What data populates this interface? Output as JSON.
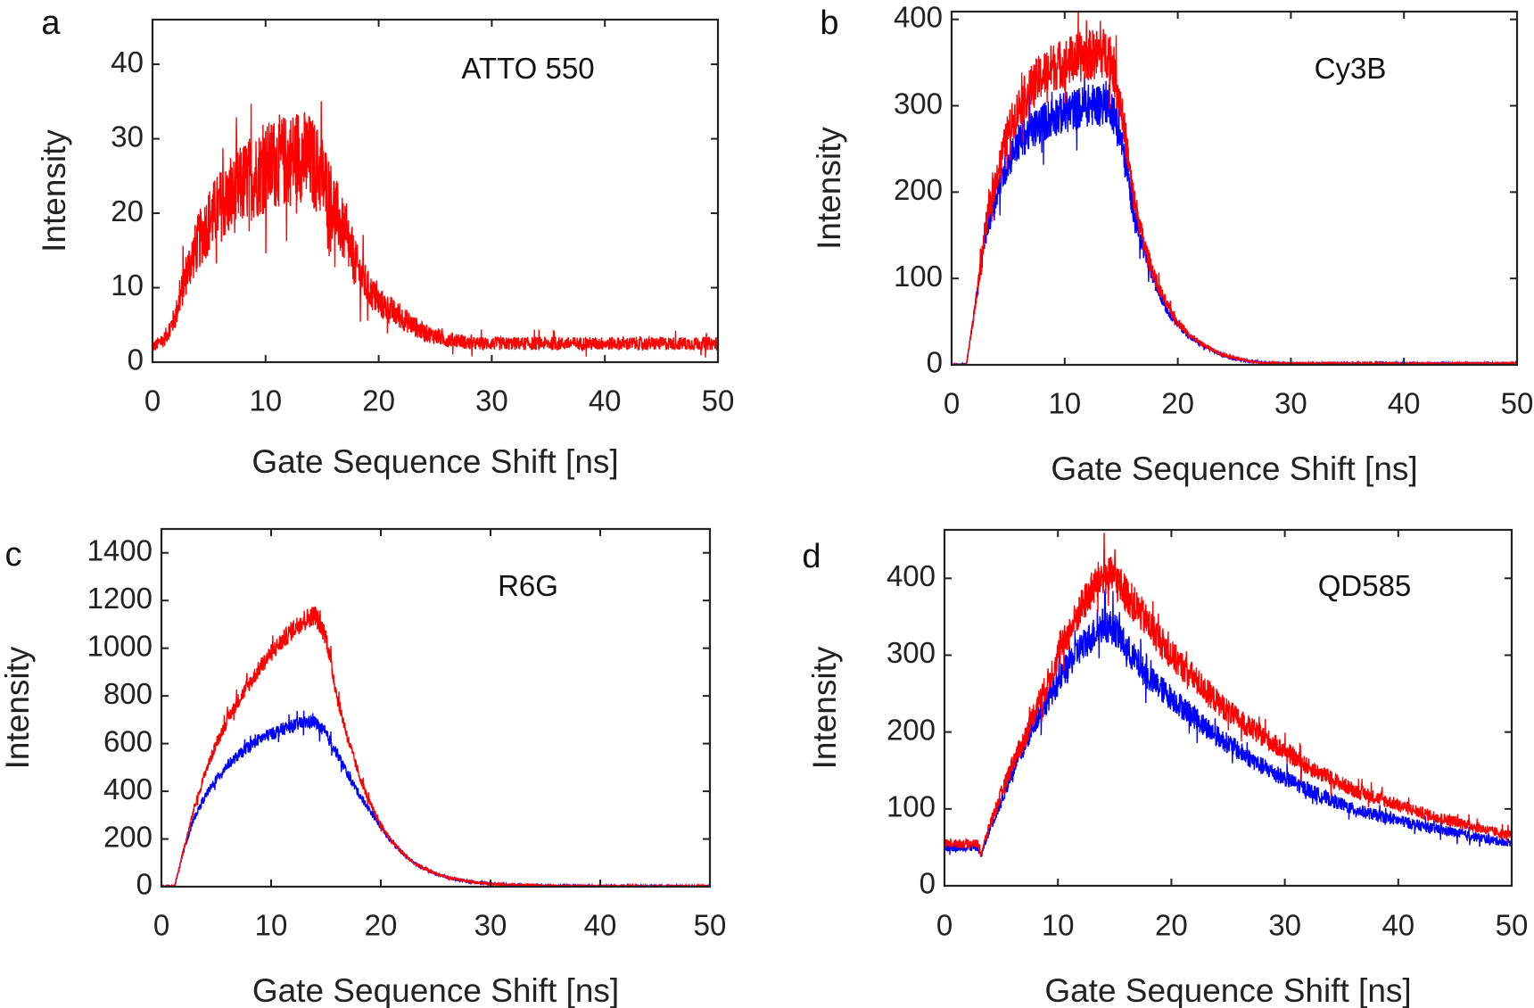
{
  "colors": {
    "red": "#ff0000",
    "blue": "#0000ff",
    "axis": "#222222"
  },
  "chart_data": [
    {
      "type": "line",
      "panel": "a",
      "annotation": "ATTO 550",
      "xlabel": "Gate Sequence Shift [ns]",
      "ylabel": "Intensity",
      "xlim": [
        0,
        50
      ],
      "ylim": [
        0,
        46
      ],
      "xticks": [
        0,
        10,
        20,
        30,
        40,
        50
      ],
      "yticks": [
        0,
        10,
        20,
        30,
        40
      ],
      "grid": false,
      "series": [
        {
          "color": "red",
          "x": [
            0,
            1,
            2,
            3,
            4,
            5,
            6,
            7,
            8,
            9,
            10,
            11,
            12,
            13,
            14,
            15,
            16,
            17,
            18,
            19,
            20,
            21,
            22,
            23,
            24,
            25,
            26,
            27,
            28,
            30,
            35,
            40,
            45,
            50
          ],
          "y": [
            2,
            3,
            6,
            12,
            16,
            19,
            21,
            22,
            24,
            25,
            26,
            27,
            27,
            28,
            27,
            25,
            21,
            17,
            13,
            10,
            8,
            7,
            6,
            5,
            4,
            3.5,
            3,
            3,
            2.5,
            2.5,
            2.5,
            2.5,
            2.5,
            2.5
          ]
        }
      ]
    },
    {
      "type": "line",
      "panel": "b",
      "annotation": "Cy3B",
      "xlabel": "Gate Sequence Shift [ns]",
      "ylabel": "Intensity",
      "xlim": [
        0,
        50
      ],
      "ylim": [
        0,
        409
      ],
      "xticks": [
        0,
        10,
        20,
        30,
        40,
        50
      ],
      "yticks": [
        0,
        100,
        200,
        300,
        400
      ],
      "grid": false,
      "series": [
        {
          "color": "blue",
          "x": [
            0,
            1.3,
            2,
            3,
            4,
            5,
            6,
            7,
            8,
            9,
            10,
            11,
            12,
            13,
            14,
            15,
            16,
            17,
            18,
            19,
            20,
            21,
            22,
            23,
            24,
            25,
            26,
            27,
            28,
            30,
            40,
            50
          ],
          "y": [
            0,
            0,
            60,
            150,
            200,
            235,
            260,
            270,
            280,
            288,
            292,
            296,
            300,
            302,
            305,
            260,
            185,
            130,
            95,
            65,
            47,
            33,
            24,
            17,
            11,
            7,
            5,
            3,
            2,
            1.5,
            1.5,
            1.5
          ]
        },
        {
          "color": "red",
          "x": [
            0,
            1.3,
            2,
            3,
            4,
            5,
            6,
            7,
            8,
            9,
            10,
            11,
            12,
            13,
            14,
            15,
            16,
            17,
            18,
            19,
            20,
            21,
            22,
            23,
            24,
            25,
            26,
            27,
            28,
            30,
            40,
            50
          ],
          "y": [
            0,
            0,
            60,
            160,
            220,
            270,
            300,
            320,
            335,
            345,
            350,
            355,
            358,
            360,
            362,
            300,
            200,
            140,
            100,
            70,
            50,
            35,
            25,
            18,
            12,
            8,
            5,
            3,
            2,
            1.5,
            1.5,
            1.5
          ]
        }
      ]
    },
    {
      "type": "line",
      "panel": "c",
      "annotation": "R6G",
      "xlabel": "Gate Sequence Shift [ns]",
      "ylabel": "Intensity",
      "xlim": [
        0,
        50
      ],
      "ylim": [
        0,
        1500
      ],
      "xticks": [
        0,
        10,
        20,
        30,
        40,
        50
      ],
      "yticks": [
        0,
        200,
        400,
        600,
        800,
        1000,
        1200,
        1400
      ],
      "grid": false,
      "series": [
        {
          "color": "blue",
          "x": [
            0,
            1.2,
            2,
            3,
            4,
            5,
            6,
            7,
            8,
            9,
            10,
            11,
            12,
            13,
            14,
            15,
            16,
            17,
            18,
            19,
            20,
            21,
            22,
            23,
            24,
            25,
            26,
            27,
            28,
            30,
            32,
            35,
            40,
            50
          ],
          "y": [
            0,
            0,
            150,
            290,
            380,
            450,
            510,
            550,
            590,
            620,
            640,
            660,
            675,
            690,
            690,
            640,
            560,
            470,
            390,
            320,
            250,
            190,
            140,
            100,
            75,
            55,
            40,
            30,
            22,
            12,
            7,
            4,
            2,
            1
          ]
        },
        {
          "color": "red",
          "x": [
            0,
            1.2,
            2,
            3,
            4,
            5,
            6,
            7,
            8,
            9,
            10,
            11,
            12,
            13,
            14,
            15,
            16,
            17,
            18,
            19,
            20,
            21,
            22,
            23,
            24,
            25,
            26,
            27,
            28,
            30,
            32,
            35,
            40,
            50
          ],
          "y": [
            0,
            0,
            150,
            330,
            480,
            600,
            700,
            780,
            850,
            920,
            980,
            1030,
            1080,
            1120,
            1140,
            1050,
            800,
            620,
            470,
            350,
            260,
            190,
            140,
            100,
            75,
            55,
            40,
            30,
            22,
            12,
            7,
            4,
            2,
            1
          ]
        }
      ]
    },
    {
      "type": "line",
      "panel": "d",
      "annotation": "QD585",
      "xlabel": "Gate Sequence Shift [ns]",
      "ylabel": "Intensity",
      "xlim": [
        0,
        50
      ],
      "ylim": [
        0,
        463
      ],
      "xticks": [
        0,
        10,
        20,
        30,
        40,
        50
      ],
      "yticks": [
        0,
        100,
        200,
        300,
        400
      ],
      "grid": false,
      "series": [
        {
          "color": "blue",
          "x": [
            0,
            3,
            3.2,
            4,
            5,
            6,
            7,
            8,
            9,
            10,
            11,
            12,
            13,
            14,
            15,
            16,
            17,
            18,
            20,
            22,
            24,
            26,
            28,
            30,
            32,
            34,
            36,
            38,
            40,
            42,
            44,
            46,
            48,
            50
          ],
          "y": [
            50,
            50,
            38,
            75,
            110,
            150,
            180,
            215,
            240,
            265,
            290,
            310,
            325,
            340,
            335,
            310,
            290,
            270,
            245,
            220,
            195,
            175,
            155,
            140,
            125,
            112,
            100,
            92,
            85,
            78,
            72,
            66,
            60,
            56
          ]
        },
        {
          "color": "red",
          "x": [
            0,
            3,
            3.2,
            4,
            5,
            6,
            7,
            8,
            9,
            10,
            11,
            12,
            13,
            14,
            15,
            16,
            17,
            18,
            20,
            22,
            24,
            26,
            28,
            30,
            32,
            34,
            36,
            38,
            40,
            42,
            44,
            46,
            48,
            50
          ],
          "y": [
            55,
            55,
            40,
            80,
            120,
            160,
            190,
            230,
            260,
            300,
            330,
            360,
            385,
            405,
            400,
            380,
            360,
            340,
            300,
            270,
            240,
            215,
            195,
            175,
            155,
            140,
            125,
            115,
            105,
            95,
            87,
            80,
            72,
            65
          ]
        }
      ]
    }
  ]
}
